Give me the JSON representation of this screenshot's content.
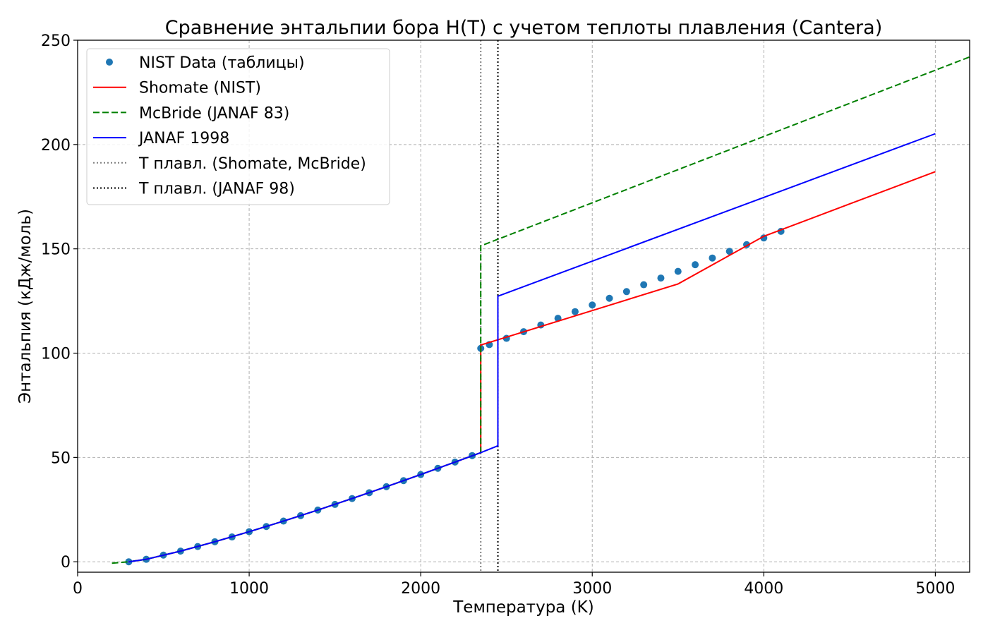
{
  "chart_data": {
    "type": "line",
    "title": "Сравнение энтальпии бора H(T) с учетом теплоты плавления (Cantera)",
    "xlabel": "Температура (K)",
    "ylabel": "Энтальпия (кДж/моль)",
    "xlim": [
      0,
      5200
    ],
    "ylim": [
      -5,
      250
    ],
    "xticks": [
      0,
      1000,
      2000,
      3000,
      4000,
      5000
    ],
    "yticks": [
      0,
      50,
      100,
      150,
      200,
      250
    ],
    "grid": true,
    "legend_position": "top-left",
    "series": [
      {
        "name": "NIST Data (таблицы)",
        "kind": "scatter",
        "color": "#1f77b4",
        "x": [
          298,
          400,
          500,
          600,
          700,
          800,
          900,
          1000,
          1100,
          1200,
          1300,
          1400,
          1500,
          1600,
          1700,
          1800,
          1900,
          2000,
          2100,
          2200,
          2300,
          2350,
          2400,
          2500,
          2600,
          2700,
          2800,
          2900,
          3000,
          3100,
          3200,
          3300,
          3400,
          3500,
          3600,
          3700,
          3800,
          3900,
          4000,
          4100
        ],
        "y": [
          0.0,
          1.2,
          3.2,
          5.1,
          7.3,
          9.6,
          11.9,
          14.4,
          16.9,
          19.5,
          22.1,
          24.8,
          27.5,
          30.3,
          33.1,
          36.0,
          38.9,
          41.8,
          44.8,
          47.8,
          50.9,
          102.3,
          104.1,
          107.1,
          110.3,
          113.5,
          116.7,
          119.9,
          123.1,
          126.3,
          129.5,
          132.8,
          136.0,
          139.2,
          142.4,
          145.6,
          148.8,
          152.0,
          155.2,
          158.4
        ]
      },
      {
        "name": "Shomate (NIST)",
        "kind": "line",
        "color": "#ff0000",
        "dash": "solid",
        "x": [
          298,
          400,
          600,
          800,
          1000,
          1200,
          1400,
          1600,
          1800,
          2000,
          2200,
          2350,
          2350,
          2500,
          3000,
          3500,
          4000,
          4500,
          5000
        ],
        "y": [
          0.0,
          1.2,
          5.1,
          9.6,
          14.4,
          19.5,
          24.8,
          30.3,
          36.0,
          41.8,
          47.8,
          52.3,
          103.9,
          107.7,
          120.4,
          133.2,
          156.0,
          171.5,
          187.0
        ]
      },
      {
        "name": "McBride (JANAF 83)",
        "kind": "line",
        "color": "#008000",
        "dash": "dashed",
        "x": [
          200,
          298,
          400,
          600,
          800,
          1000,
          1200,
          1400,
          1600,
          1800,
          2000,
          2200,
          2350,
          2350,
          5200
        ],
        "y": [
          -0.7,
          0.0,
          1.2,
          5.1,
          9.6,
          14.4,
          19.5,
          24.8,
          30.3,
          36.0,
          41.8,
          47.8,
          52.3,
          151.4,
          242.0
        ]
      },
      {
        "name": "JANAF 1998",
        "kind": "line",
        "color": "#0000ff",
        "dash": "solid",
        "x": [
          298,
          400,
          600,
          800,
          1000,
          1200,
          1400,
          1600,
          1800,
          2000,
          2200,
          2350,
          2450,
          2450,
          5000
        ],
        "y": [
          0.0,
          1.2,
          5.1,
          9.6,
          14.4,
          19.5,
          24.8,
          30.3,
          36.0,
          41.8,
          47.8,
          52.3,
          55.6,
          127.3,
          205.2
        ]
      },
      {
        "name": "T плавл. (Shomate, McBride)",
        "kind": "vline",
        "color": "#808080",
        "dash": "dotted",
        "x": 2350
      },
      {
        "name": "T плавл. (JANAF 98)",
        "kind": "vline",
        "color": "#000000",
        "dash": "dotted",
        "x": 2450
      }
    ]
  }
}
